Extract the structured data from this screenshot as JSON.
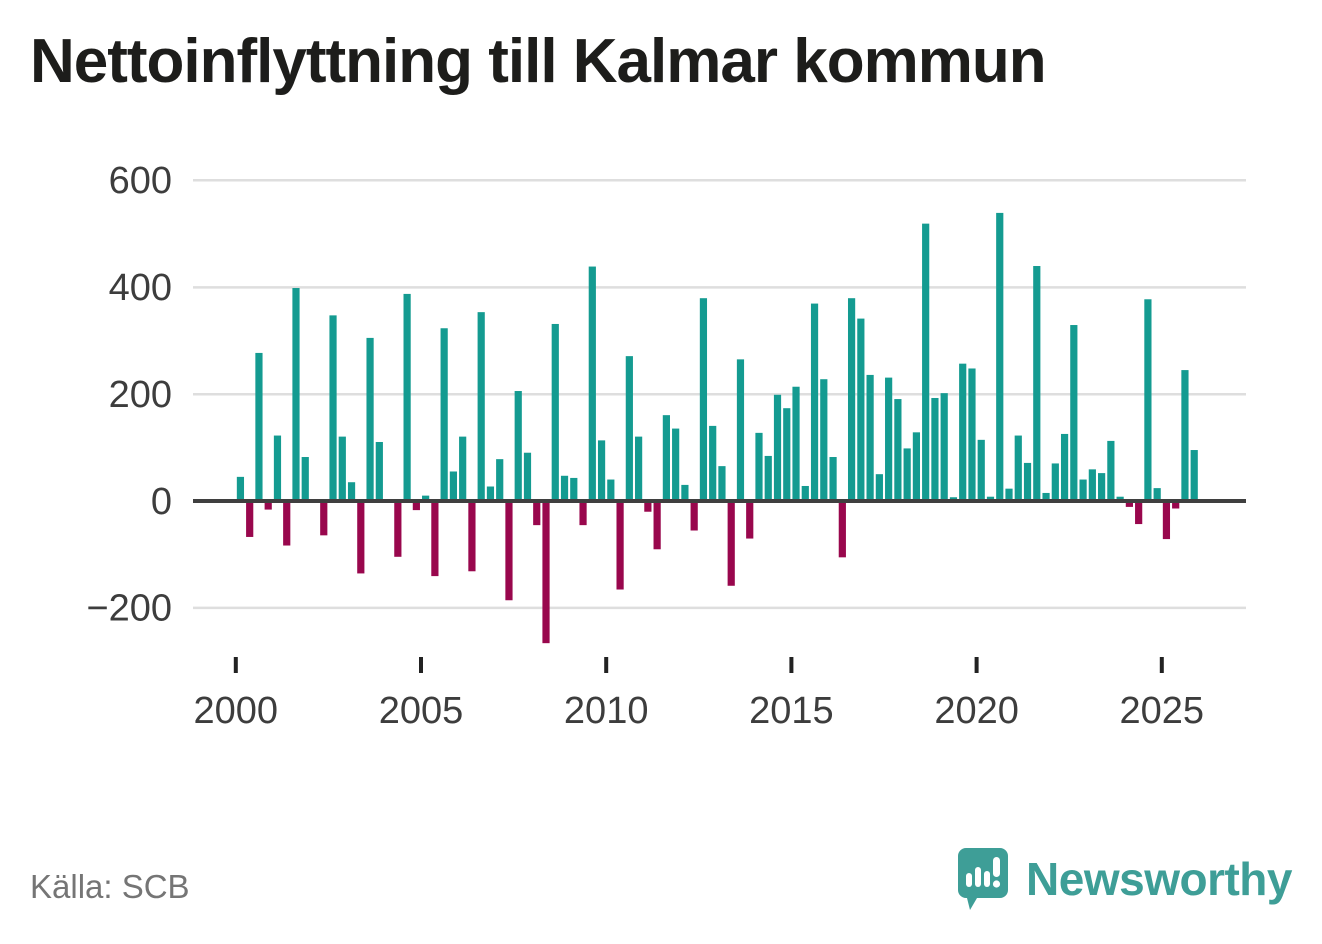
{
  "title": "Nettoinflyttning till Kalmar kommun",
  "source_note": "Källa: SCB",
  "branding": {
    "name": "Newsworthy",
    "logo": "speech-bubble-bar-chart-icon"
  },
  "colors": {
    "positive_bar": "#149b91",
    "negative_bar": "#99074d",
    "axis_line": "#3f3f3f",
    "gridline": "#dedede",
    "tick_label": "#3d3d3d",
    "title_text": "#1d1d1b",
    "source_text": "#757575",
    "brand_teal": "#3e9e97"
  },
  "chart_data": {
    "type": "bar",
    "title": "Nettoinflyttning till Kalmar kommun",
    "xlabel": "",
    "ylabel": "",
    "frequency": "quarterly",
    "start": "2000-Q1",
    "end": "2025-Q4",
    "x_ticks": [
      "2000",
      "2005",
      "2010",
      "2015",
      "2020",
      "2025"
    ],
    "y_ticks": [
      "600",
      "400",
      "200",
      "0",
      "−200"
    ],
    "y_tick_values": [
      600,
      400,
      200,
      0,
      -200
    ],
    "ylim": [
      -300,
      650
    ],
    "grid": "horizontal",
    "legend": "none",
    "values": [
      45,
      -67,
      276,
      -16,
      122,
      -83,
      397,
      82,
      2,
      -64,
      346,
      120,
      35,
      -135,
      304,
      110,
      2,
      -104,
      386,
      -17,
      10,
      -140,
      322,
      55,
      120,
      -131,
      352,
      27,
      78,
      -185,
      205,
      90,
      -45,
      -265,
      330,
      47,
      43,
      -45,
      437,
      113,
      40,
      -165,
      270,
      120,
      -20,
      -90,
      160,
      135,
      30,
      -55,
      378,
      140,
      65,
      -158,
      264,
      -70,
      127,
      84,
      198,
      173,
      213,
      28,
      368,
      227,
      82,
      -105,
      378,
      340,
      235,
      50,
      230,
      190,
      98,
      128,
      517,
      192,
      201,
      7,
      256,
      247,
      114,
      8,
      537,
      23,
      122,
      71,
      438,
      15,
      70,
      125,
      328,
      40,
      59,
      52,
      112,
      8,
      -11,
      -43,
      376,
      24,
      -71,
      -14,
      244,
      95
    ]
  }
}
